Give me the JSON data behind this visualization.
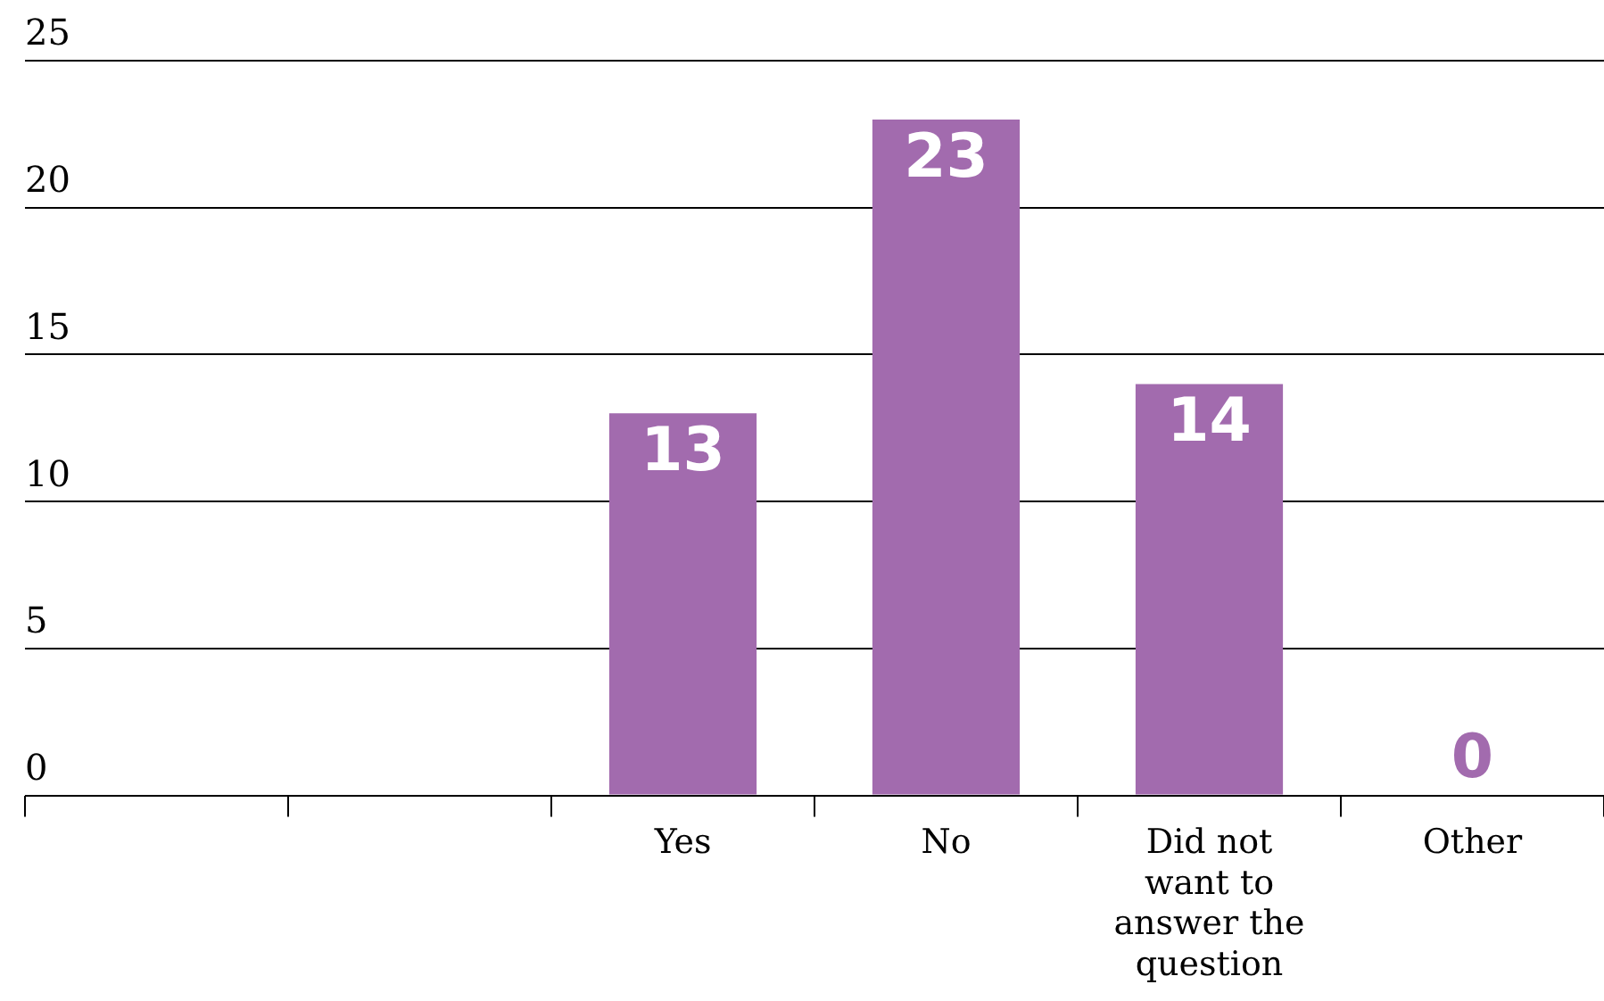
{
  "chart_data": {
    "type": "bar",
    "categories": [
      null,
      null,
      "Yes",
      "No",
      "Did not want to answer the question",
      "Other"
    ],
    "values": [
      null,
      null,
      13,
      23,
      14,
      0
    ],
    "color": "#a26bae",
    "ylim": [
      0,
      25
    ],
    "yticks": [
      0,
      5,
      10,
      15,
      20,
      25
    ],
    "grid": "y",
    "data_labels": true,
    "legend": false
  }
}
